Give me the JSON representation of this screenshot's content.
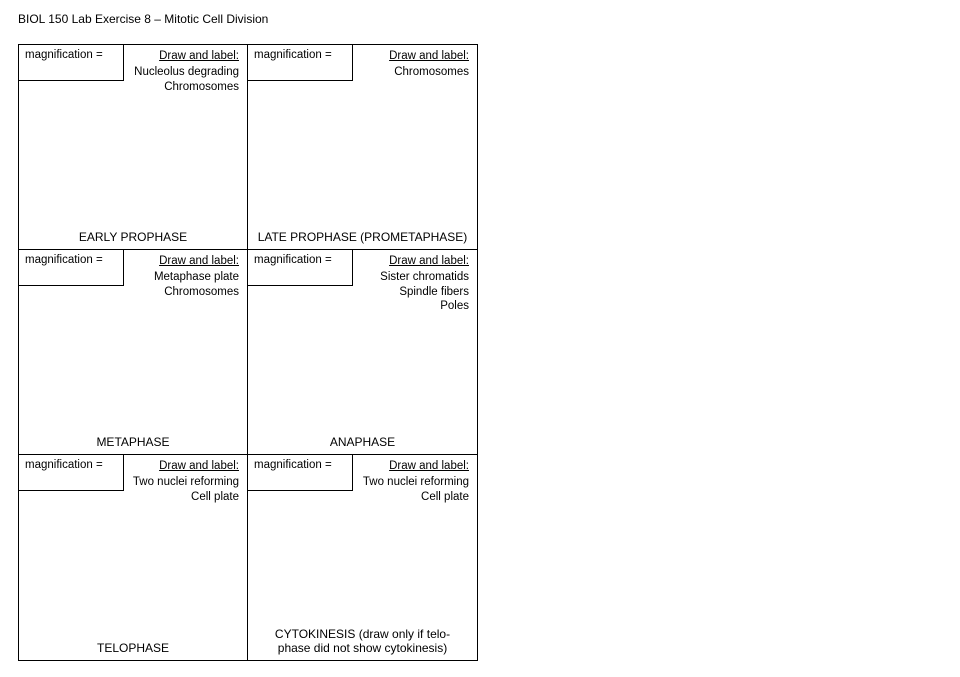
{
  "header": "BIOL 150 Lab Exercise 8 – Mitotic Cell Division",
  "mag_label": "magnification =",
  "draw_label_head": "Draw and label:",
  "cells": [
    {
      "items": [
        "Nucleolus degrading",
        "Chromosomes"
      ],
      "phase": "EARLY PROPHASE"
    },
    {
      "items": [
        "Chromosomes"
      ],
      "phase": "LATE PROPHASE (PROMETAPHASE)"
    },
    {
      "items": [
        "Metaphase plate",
        "Chromosomes"
      ],
      "phase": "METAPHASE"
    },
    {
      "items": [
        "Sister chromatids",
        "Spindle fibers",
        "Poles"
      ],
      "phase": "ANAPHASE"
    },
    {
      "items": [
        "Two nuclei reforming",
        "Cell plate"
      ],
      "phase": "TELOPHASE"
    },
    {
      "items": [
        "Two nuclei reforming",
        "Cell plate"
      ],
      "phase": "CYTOKINESIS (draw only if telo-\nphase did not show cytokinesis)"
    }
  ]
}
